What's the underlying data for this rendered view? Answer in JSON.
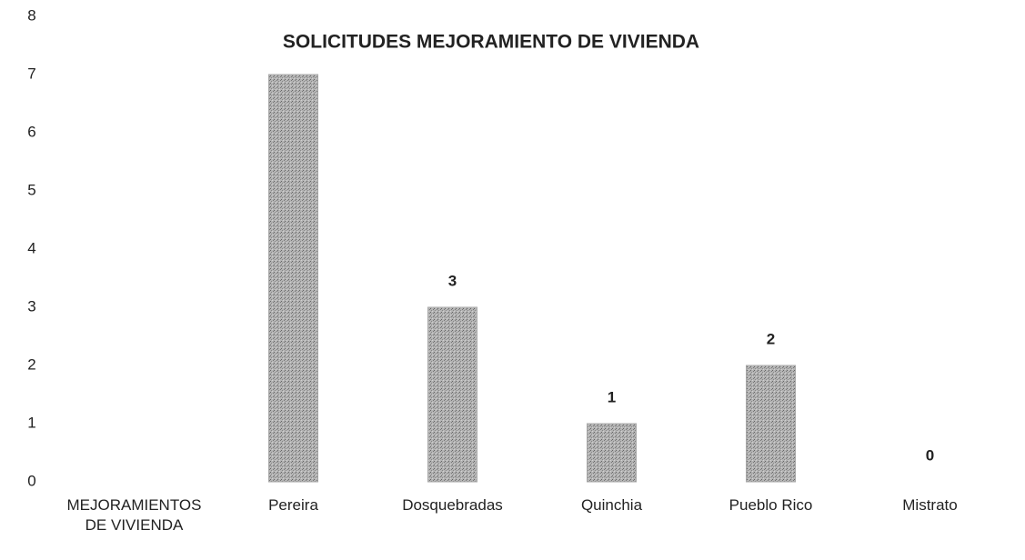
{
  "chart_data": {
    "type": "bar",
    "title": "SOLICITUDES MEJORAMIENTO DE VIVIENDA",
    "categories": [
      "MEJORAMIENTOS DE VIVIENDA",
      "Pereira",
      "Dosquebradas",
      "Quinchia",
      "Pueblo Rico",
      "Mistrato"
    ],
    "values": [
      null,
      7,
      3,
      1,
      2,
      0
    ],
    "labels_shown": [
      false,
      false,
      true,
      true,
      true,
      true
    ],
    "color": "#a8a8a8",
    "ylim": [
      0,
      8
    ],
    "yticks": [
      0,
      1,
      2,
      3,
      4,
      5,
      6,
      7,
      8
    ],
    "grid": false
  }
}
